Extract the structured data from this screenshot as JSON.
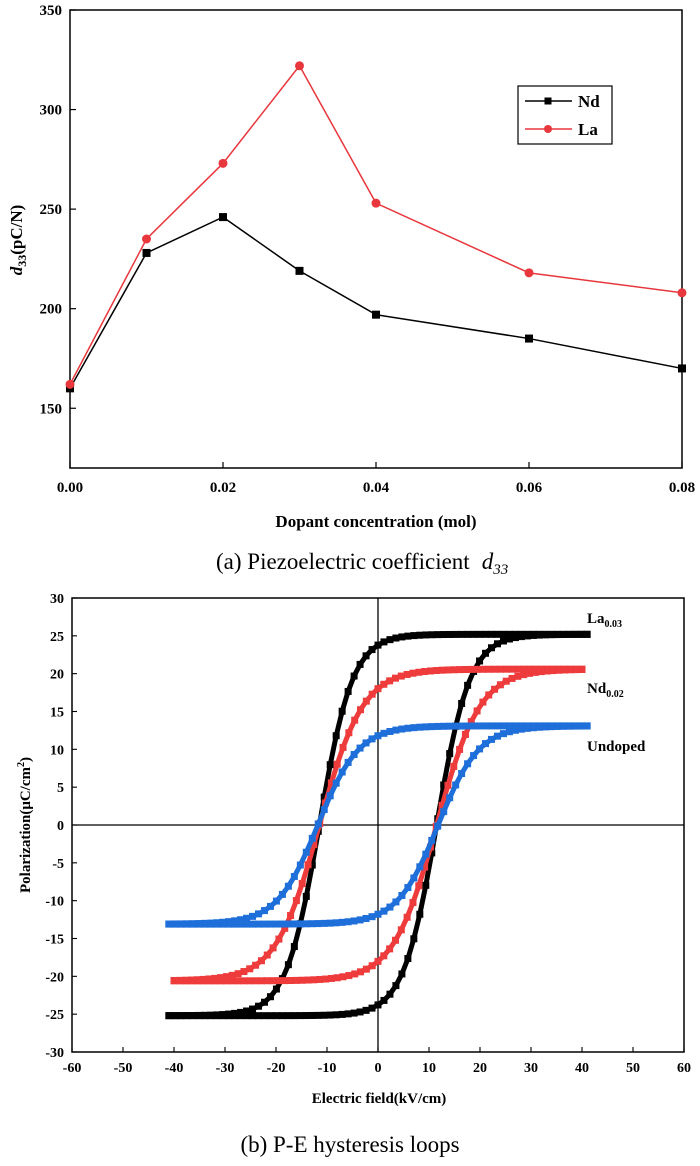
{
  "chart_data": [
    {
      "type": "line",
      "caption": "(a) Piezoelectric coefficient",
      "caption_symbol": {
        "base": "d",
        "sub": "33"
      },
      "xlabel": "Dopant concentration (mol)",
      "ylabel": {
        "base": "d",
        "sub": "33",
        "rest": "(pC/N)"
      },
      "xlim": [
        0.0,
        0.08
      ],
      "ylim": [
        120,
        350
      ],
      "x_ticks": [
        "0.00",
        "0.02",
        "0.04",
        "0.06",
        "0.08"
      ],
      "y_ticks": [
        "150",
        "200",
        "250",
        "300",
        "350"
      ],
      "legend_position": "top-right",
      "grid": false,
      "series": [
        {
          "name": "Nd",
          "color": "#000000",
          "marker": "square",
          "x": [
            0.0,
            0.01,
            0.02,
            0.03,
            0.04,
            0.06,
            0.08
          ],
          "y": [
            160,
            228,
            246,
            219,
            197,
            185,
            170
          ]
        },
        {
          "name": "La",
          "color": "#e8373d",
          "marker": "circle",
          "x": [
            0.0,
            0.01,
            0.02,
            0.03,
            0.04,
            0.06,
            0.08
          ],
          "y": [
            162,
            235,
            273,
            322,
            253,
            218,
            208
          ]
        }
      ]
    },
    {
      "type": "scatter",
      "caption": "(b) P-E hysteresis loops",
      "xlabel": "Electric field(kV/cm)",
      "ylabel": {
        "base": "Polarization(μC/cm",
        "sup": "2",
        "rest": ")"
      },
      "xlim": [
        -60,
        60
      ],
      "ylim": [
        -30,
        30
      ],
      "x_ticks": [
        "-60",
        "-50",
        "-40",
        "-30",
        "-20",
        "-10",
        "0",
        "10",
        "20",
        "30",
        "40",
        "50",
        "60"
      ],
      "y_ticks": [
        "-30",
        "-25",
        "-20",
        "-15",
        "-10",
        "-5",
        "0",
        "5",
        "10",
        "15",
        "20",
        "25",
        "30"
      ],
      "grid": false,
      "origin_lines": true,
      "series": [
        {
          "name": "La0.03",
          "label_base": "La",
          "label_sub": "0.03",
          "color": "#000000",
          "Emax": 41,
          "Pmax": 25.2,
          "Ec": 11.5,
          "w": 6.5,
          "pmin": -26,
          "pmaxBand": 26
        },
        {
          "name": "Nd0.02",
          "label_base": "Nd",
          "label_sub": "0.02",
          "color": "#ee3b3b",
          "Emax": 40,
          "Pmax": 20.6,
          "Ec": 11.5,
          "w": 8.5,
          "pmin": -36,
          "pmaxBand": 36
        },
        {
          "name": "Undoped",
          "label_base": "Undoped",
          "label_sub": "",
          "color": "#1e6fd9",
          "Emax": 41,
          "Pmax": 13.1,
          "Ec": 11.8,
          "w": 8.0,
          "pmin": -35,
          "pmaxBand": 30
        }
      ]
    }
  ]
}
